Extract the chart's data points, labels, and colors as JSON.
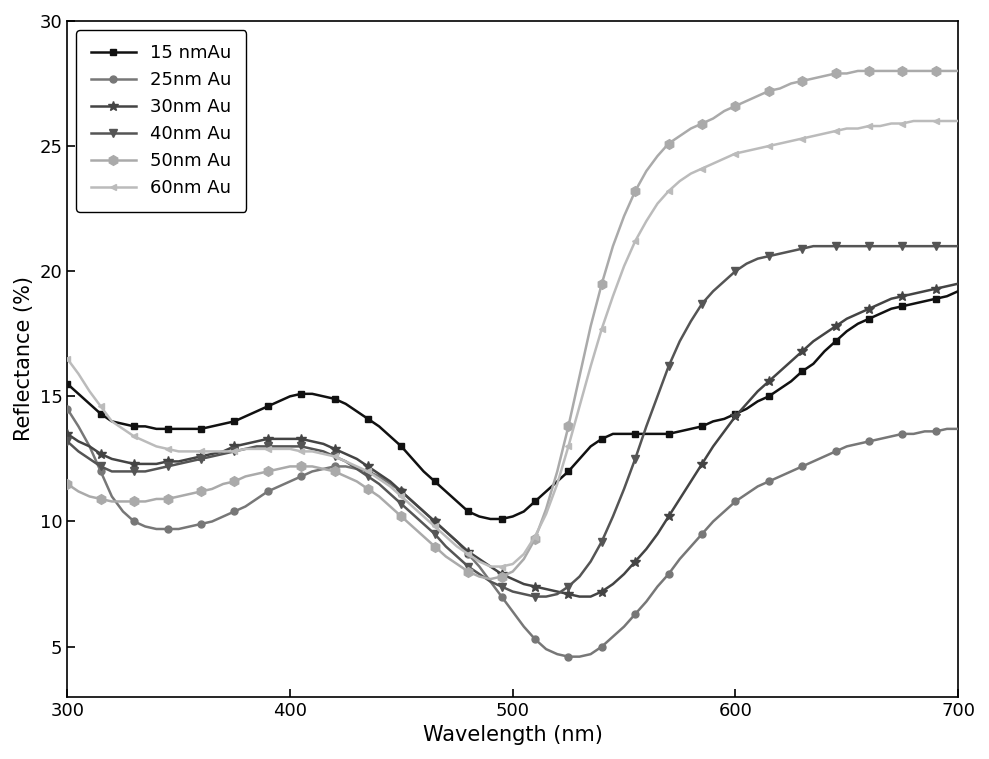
{
  "title": "",
  "xlabel": "Wavelength (nm)",
  "ylabel": "Reflectance (%)",
  "xlim": [
    300,
    700
  ],
  "ylim": [
    3,
    30
  ],
  "yticks": [
    5,
    10,
    15,
    20,
    25,
    30
  ],
  "xticks": [
    300,
    400,
    500,
    600,
    700
  ],
  "background_color": "#ffffff",
  "series": [
    {
      "label": "15 nmAu",
      "color": "#111111",
      "marker": "s",
      "markersize": 5,
      "linewidth": 1.8,
      "markevery": 3,
      "x": [
        300,
        305,
        310,
        315,
        320,
        325,
        330,
        335,
        340,
        345,
        350,
        355,
        360,
        365,
        370,
        375,
        380,
        385,
        390,
        395,
        400,
        405,
        410,
        415,
        420,
        425,
        430,
        435,
        440,
        445,
        450,
        455,
        460,
        465,
        470,
        475,
        480,
        485,
        490,
        495,
        500,
        505,
        510,
        515,
        520,
        525,
        530,
        535,
        540,
        545,
        550,
        555,
        560,
        565,
        570,
        575,
        580,
        585,
        590,
        595,
        600,
        605,
        610,
        615,
        620,
        625,
        630,
        635,
        640,
        645,
        650,
        655,
        660,
        665,
        670,
        675,
        680,
        685,
        690,
        695,
        700
      ],
      "y": [
        15.5,
        15.1,
        14.7,
        14.3,
        14.0,
        13.9,
        13.8,
        13.8,
        13.7,
        13.7,
        13.7,
        13.7,
        13.7,
        13.8,
        13.9,
        14.0,
        14.2,
        14.4,
        14.6,
        14.8,
        15.0,
        15.1,
        15.1,
        15.0,
        14.9,
        14.7,
        14.4,
        14.1,
        13.8,
        13.4,
        13.0,
        12.5,
        12.0,
        11.6,
        11.2,
        10.8,
        10.4,
        10.2,
        10.1,
        10.1,
        10.2,
        10.4,
        10.8,
        11.2,
        11.6,
        12.0,
        12.5,
        13.0,
        13.3,
        13.5,
        13.5,
        13.5,
        13.5,
        13.5,
        13.5,
        13.6,
        13.7,
        13.8,
        14.0,
        14.1,
        14.3,
        14.5,
        14.8,
        15.0,
        15.3,
        15.6,
        16.0,
        16.3,
        16.8,
        17.2,
        17.6,
        17.9,
        18.1,
        18.3,
        18.5,
        18.6,
        18.7,
        18.8,
        18.9,
        19.0,
        19.2
      ]
    },
    {
      "label": "25nm Au",
      "color": "#777777",
      "marker": "o",
      "markersize": 5,
      "linewidth": 1.8,
      "markevery": 3,
      "x": [
        300,
        305,
        310,
        315,
        320,
        325,
        330,
        335,
        340,
        345,
        350,
        355,
        360,
        365,
        370,
        375,
        380,
        385,
        390,
        395,
        400,
        405,
        410,
        415,
        420,
        425,
        430,
        435,
        440,
        445,
        450,
        455,
        460,
        465,
        470,
        475,
        480,
        485,
        490,
        495,
        500,
        505,
        510,
        515,
        520,
        525,
        530,
        535,
        540,
        545,
        550,
        555,
        560,
        565,
        570,
        575,
        580,
        585,
        590,
        595,
        600,
        605,
        610,
        615,
        620,
        625,
        630,
        635,
        640,
        645,
        650,
        655,
        660,
        665,
        670,
        675,
        680,
        685,
        690,
        695,
        700
      ],
      "y": [
        14.5,
        13.8,
        13.0,
        12.0,
        11.0,
        10.4,
        10.0,
        9.8,
        9.7,
        9.7,
        9.7,
        9.8,
        9.9,
        10.0,
        10.2,
        10.4,
        10.6,
        10.9,
        11.2,
        11.4,
        11.6,
        11.8,
        12.0,
        12.1,
        12.2,
        12.2,
        12.1,
        12.0,
        11.8,
        11.5,
        11.2,
        10.8,
        10.4,
        10.0,
        9.6,
        9.2,
        8.7,
        8.2,
        7.6,
        7.0,
        6.4,
        5.8,
        5.3,
        4.9,
        4.7,
        4.6,
        4.6,
        4.7,
        5.0,
        5.4,
        5.8,
        6.3,
        6.8,
        7.4,
        7.9,
        8.5,
        9.0,
        9.5,
        10.0,
        10.4,
        10.8,
        11.1,
        11.4,
        11.6,
        11.8,
        12.0,
        12.2,
        12.4,
        12.6,
        12.8,
        13.0,
        13.1,
        13.2,
        13.3,
        13.4,
        13.5,
        13.5,
        13.6,
        13.6,
        13.7,
        13.7
      ]
    },
    {
      "label": "30nm Au",
      "color": "#444444",
      "marker": "*",
      "markersize": 7,
      "linewidth": 1.8,
      "markevery": 3,
      "x": [
        300,
        305,
        310,
        315,
        320,
        325,
        330,
        335,
        340,
        345,
        350,
        355,
        360,
        365,
        370,
        375,
        380,
        385,
        390,
        395,
        400,
        405,
        410,
        415,
        420,
        425,
        430,
        435,
        440,
        445,
        450,
        455,
        460,
        465,
        470,
        475,
        480,
        485,
        490,
        495,
        500,
        505,
        510,
        515,
        520,
        525,
        530,
        535,
        540,
        545,
        550,
        555,
        560,
        565,
        570,
        575,
        580,
        585,
        590,
        595,
        600,
        605,
        610,
        615,
        620,
        625,
        630,
        635,
        640,
        645,
        650,
        655,
        660,
        665,
        670,
        675,
        680,
        685,
        690,
        695,
        700
      ],
      "y": [
        13.5,
        13.2,
        13.0,
        12.7,
        12.5,
        12.4,
        12.3,
        12.3,
        12.3,
        12.4,
        12.4,
        12.5,
        12.6,
        12.7,
        12.8,
        13.0,
        13.1,
        13.2,
        13.3,
        13.3,
        13.3,
        13.3,
        13.2,
        13.1,
        12.9,
        12.7,
        12.5,
        12.2,
        11.9,
        11.6,
        11.2,
        10.8,
        10.4,
        10.0,
        9.6,
        9.2,
        8.8,
        8.5,
        8.2,
        7.9,
        7.7,
        7.5,
        7.4,
        7.3,
        7.2,
        7.1,
        7.0,
        7.0,
        7.2,
        7.5,
        7.9,
        8.4,
        8.9,
        9.5,
        10.2,
        10.9,
        11.6,
        12.3,
        13.0,
        13.6,
        14.2,
        14.7,
        15.2,
        15.6,
        16.0,
        16.4,
        16.8,
        17.2,
        17.5,
        17.8,
        18.1,
        18.3,
        18.5,
        18.7,
        18.9,
        19.0,
        19.1,
        19.2,
        19.3,
        19.4,
        19.5
      ]
    },
    {
      "label": "40nm Au",
      "color": "#555555",
      "marker": "v",
      "markersize": 6,
      "linewidth": 1.8,
      "markevery": 3,
      "x": [
        300,
        305,
        310,
        315,
        320,
        325,
        330,
        335,
        340,
        345,
        350,
        355,
        360,
        365,
        370,
        375,
        380,
        385,
        390,
        395,
        400,
        405,
        410,
        415,
        420,
        425,
        430,
        435,
        440,
        445,
        450,
        455,
        460,
        465,
        470,
        475,
        480,
        485,
        490,
        495,
        500,
        505,
        510,
        515,
        520,
        525,
        530,
        535,
        540,
        545,
        550,
        555,
        560,
        565,
        570,
        575,
        580,
        585,
        590,
        595,
        600,
        605,
        610,
        615,
        620,
        625,
        630,
        635,
        640,
        645,
        650,
        655,
        660,
        665,
        670,
        675,
        680,
        685,
        690,
        695,
        700
      ],
      "y": [
        13.2,
        12.8,
        12.5,
        12.2,
        12.0,
        12.0,
        12.0,
        12.0,
        12.1,
        12.2,
        12.3,
        12.4,
        12.5,
        12.6,
        12.7,
        12.8,
        12.9,
        13.0,
        13.0,
        13.0,
        13.0,
        13.0,
        12.9,
        12.8,
        12.6,
        12.4,
        12.1,
        11.8,
        11.5,
        11.1,
        10.7,
        10.3,
        9.9,
        9.5,
        9.0,
        8.6,
        8.2,
        7.9,
        7.6,
        7.4,
        7.2,
        7.1,
        7.0,
        7.0,
        7.1,
        7.4,
        7.8,
        8.4,
        9.2,
        10.2,
        11.3,
        12.5,
        13.8,
        15.0,
        16.2,
        17.2,
        18.0,
        18.7,
        19.2,
        19.6,
        20.0,
        20.3,
        20.5,
        20.6,
        20.7,
        20.8,
        20.9,
        21.0,
        21.0,
        21.0,
        21.0,
        21.0,
        21.0,
        21.0,
        21.0,
        21.0,
        21.0,
        21.0,
        21.0,
        21.0,
        21.0
      ]
    },
    {
      "label": "50nm Au",
      "color": "#aaaaaa",
      "marker": "h",
      "markersize": 7,
      "linewidth": 1.8,
      "markevery": 3,
      "x": [
        300,
        305,
        310,
        315,
        320,
        325,
        330,
        335,
        340,
        345,
        350,
        355,
        360,
        365,
        370,
        375,
        380,
        385,
        390,
        395,
        400,
        405,
        410,
        415,
        420,
        425,
        430,
        435,
        440,
        445,
        450,
        455,
        460,
        465,
        470,
        475,
        480,
        485,
        490,
        495,
        500,
        505,
        510,
        515,
        520,
        525,
        530,
        535,
        540,
        545,
        550,
        555,
        560,
        565,
        570,
        575,
        580,
        585,
        590,
        595,
        600,
        605,
        610,
        615,
        620,
        625,
        630,
        635,
        640,
        645,
        650,
        655,
        660,
        665,
        670,
        675,
        680,
        685,
        690,
        695,
        700
      ],
      "y": [
        11.5,
        11.2,
        11.0,
        10.9,
        10.8,
        10.8,
        10.8,
        10.8,
        10.9,
        10.9,
        11.0,
        11.1,
        11.2,
        11.3,
        11.5,
        11.6,
        11.8,
        11.9,
        12.0,
        12.1,
        12.2,
        12.2,
        12.2,
        12.1,
        12.0,
        11.8,
        11.6,
        11.3,
        11.0,
        10.6,
        10.2,
        9.8,
        9.4,
        9.0,
        8.6,
        8.3,
        8.0,
        7.8,
        7.7,
        7.8,
        8.0,
        8.5,
        9.3,
        10.5,
        12.0,
        13.8,
        15.8,
        17.8,
        19.5,
        21.0,
        22.2,
        23.2,
        24.0,
        24.6,
        25.1,
        25.4,
        25.7,
        25.9,
        26.1,
        26.4,
        26.6,
        26.8,
        27.0,
        27.2,
        27.3,
        27.5,
        27.6,
        27.7,
        27.8,
        27.9,
        27.9,
        28.0,
        28.0,
        28.0,
        28.0,
        28.0,
        28.0,
        28.0,
        28.0,
        28.0,
        28.0
      ]
    },
    {
      "label": "60nm Au",
      "color": "#bbbbbb",
      "marker": "<",
      "markersize": 5,
      "linewidth": 1.8,
      "markevery": 3,
      "x": [
        300,
        305,
        310,
        315,
        320,
        325,
        330,
        335,
        340,
        345,
        350,
        355,
        360,
        365,
        370,
        375,
        380,
        385,
        390,
        395,
        400,
        405,
        410,
        415,
        420,
        425,
        430,
        435,
        440,
        445,
        450,
        455,
        460,
        465,
        470,
        475,
        480,
        485,
        490,
        495,
        500,
        505,
        510,
        515,
        520,
        525,
        530,
        535,
        540,
        545,
        550,
        555,
        560,
        565,
        570,
        575,
        580,
        585,
        590,
        595,
        600,
        605,
        610,
        615,
        620,
        625,
        630,
        635,
        640,
        645,
        650,
        655,
        660,
        665,
        670,
        675,
        680,
        685,
        690,
        695,
        700
      ],
      "y": [
        16.5,
        15.9,
        15.2,
        14.6,
        14.0,
        13.7,
        13.4,
        13.2,
        13.0,
        12.9,
        12.8,
        12.8,
        12.8,
        12.8,
        12.8,
        12.8,
        12.9,
        12.9,
        12.9,
        12.9,
        12.9,
        12.8,
        12.8,
        12.7,
        12.6,
        12.4,
        12.2,
        12.0,
        11.7,
        11.4,
        11.0,
        10.6,
        10.2,
        9.8,
        9.4,
        9.0,
        8.7,
        8.4,
        8.2,
        8.2,
        8.3,
        8.7,
        9.4,
        10.3,
        11.5,
        13.0,
        14.6,
        16.2,
        17.7,
        19.0,
        20.2,
        21.2,
        22.0,
        22.7,
        23.2,
        23.6,
        23.9,
        24.1,
        24.3,
        24.5,
        24.7,
        24.8,
        24.9,
        25.0,
        25.1,
        25.2,
        25.3,
        25.4,
        25.5,
        25.6,
        25.7,
        25.7,
        25.8,
        25.8,
        25.9,
        25.9,
        26.0,
        26.0,
        26.0,
        26.0,
        26.0
      ]
    }
  ],
  "legend_loc": "upper left",
  "legend_fontsize": 13,
  "axis_fontsize": 15,
  "tick_fontsize": 13
}
